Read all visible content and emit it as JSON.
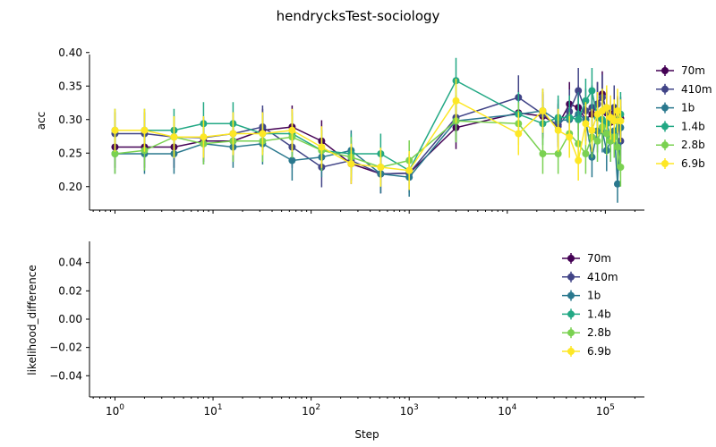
{
  "title": "hendrycksTest-sociology",
  "xlabel": "Step",
  "colors": {
    "70m": "#440154",
    "410m": "#414487",
    "1b": "#2a788e",
    "1.4b": "#22a884",
    "2.8b": "#7ad151",
    "6.9b": "#fde725"
  },
  "chart_data": [
    {
      "type": "line",
      "ylabel": "acc",
      "xscale": "log",
      "xlim": [
        0.55,
        250000
      ],
      "ylim": [
        0.165,
        0.405
      ],
      "yticks": [
        "0.20",
        "0.25",
        "0.30",
        "0.35",
        "0.40"
      ],
      "yticks_values": [
        0.2,
        0.25,
        0.3,
        0.35,
        0.4
      ],
      "xticks": [
        "10^0",
        "10^1",
        "10^2",
        "10^3",
        "10^4",
        "10^5"
      ],
      "legend_position": "outside-right",
      "x": [
        1,
        2,
        4,
        8,
        16,
        32,
        64,
        128,
        256,
        512,
        1000,
        3000,
        13000,
        23000,
        33000,
        43000,
        53000,
        63000,
        73000,
        83000,
        93000,
        103000,
        113000,
        123000,
        133000,
        143000
      ],
      "series": [
        {
          "name": "70m",
          "values": [
            0.259,
            0.259,
            0.259,
            0.268,
            0.268,
            0.284,
            0.289,
            0.268,
            0.234,
            0.219,
            0.22,
            0.288,
            0.31,
            0.305,
            0.292,
            0.323,
            0.318,
            0.3,
            0.308,
            0.323,
            0.338,
            0.31,
            0.296,
            0.31,
            0.3,
            0.302
          ],
          "errors": [
            0.031,
            0.031,
            0.031,
            0.031,
            0.031,
            0.032,
            0.032,
            0.031,
            0.03,
            0.029,
            0.029,
            0.032,
            0.033,
            0.033,
            0.032,
            0.033,
            0.033,
            0.032,
            0.033,
            0.033,
            0.034,
            0.033,
            0.032,
            0.033,
            0.032,
            0.032
          ]
        },
        {
          "name": "410m",
          "values": [
            0.279,
            0.279,
            0.274,
            0.273,
            0.279,
            0.289,
            0.259,
            0.229,
            0.239,
            0.219,
            0.22,
            0.303,
            0.333,
            0.308,
            0.29,
            0.312,
            0.343,
            0.313,
            0.318,
            0.323,
            0.333,
            0.313,
            0.298,
            0.318,
            0.303,
            0.268
          ],
          "errors": [
            0.032,
            0.032,
            0.031,
            0.031,
            0.032,
            0.032,
            0.031,
            0.03,
            0.03,
            0.029,
            0.029,
            0.033,
            0.033,
            0.033,
            0.032,
            0.033,
            0.034,
            0.033,
            0.033,
            0.033,
            0.034,
            0.033,
            0.032,
            0.033,
            0.032,
            0.031
          ]
        },
        {
          "name": "1b",
          "values": [
            0.249,
            0.249,
            0.249,
            0.264,
            0.259,
            0.264,
            0.239,
            0.244,
            0.254,
            0.219,
            0.214,
            0.298,
            0.308,
            0.313,
            0.298,
            0.3,
            0.308,
            0.3,
            0.244,
            0.283,
            0.283,
            0.254,
            0.268,
            0.283,
            0.204,
            0.288
          ],
          "errors": [
            0.03,
            0.03,
            0.03,
            0.031,
            0.031,
            0.031,
            0.03,
            0.03,
            0.03,
            0.029,
            0.029,
            0.032,
            0.033,
            0.033,
            0.032,
            0.032,
            0.033,
            0.032,
            0.03,
            0.032,
            0.032,
            0.031,
            0.031,
            0.032,
            0.028,
            0.032
          ]
        },
        {
          "name": "1.4b",
          "values": [
            0.284,
            0.284,
            0.284,
            0.294,
            0.294,
            0.279,
            0.279,
            0.254,
            0.249,
            0.249,
            0.224,
            0.358,
            0.308,
            0.294,
            0.303,
            0.303,
            0.3,
            0.328,
            0.343,
            0.303,
            0.3,
            0.294,
            0.274,
            0.274,
            0.298,
            0.308
          ],
          "errors": [
            0.032,
            0.032,
            0.032,
            0.032,
            0.032,
            0.032,
            0.032,
            0.031,
            0.03,
            0.03,
            0.029,
            0.034,
            0.033,
            0.032,
            0.033,
            0.033,
            0.032,
            0.033,
            0.034,
            0.033,
            0.032,
            0.032,
            0.031,
            0.031,
            0.032,
            0.033
          ]
        },
        {
          "name": "2.8b",
          "values": [
            0.249,
            0.254,
            0.274,
            0.264,
            0.268,
            0.268,
            0.274,
            0.254,
            0.244,
            0.229,
            0.239,
            0.298,
            0.294,
            0.249,
            0.249,
            0.279,
            0.264,
            0.249,
            0.274,
            0.268,
            0.289,
            0.279,
            0.268,
            0.274,
            0.259,
            0.229
          ],
          "errors": [
            0.03,
            0.03,
            0.031,
            0.031,
            0.031,
            0.031,
            0.031,
            0.03,
            0.03,
            0.029,
            0.03,
            0.032,
            0.032,
            0.03,
            0.03,
            0.032,
            0.031,
            0.03,
            0.031,
            0.031,
            0.032,
            0.032,
            0.031,
            0.031,
            0.031,
            0.029
          ]
        },
        {
          "name": "6.9b",
          "values": [
            0.284,
            0.284,
            0.274,
            0.274,
            0.279,
            0.279,
            0.284,
            0.259,
            0.234,
            0.229,
            0.224,
            0.328,
            0.279,
            0.313,
            0.284,
            0.274,
            0.239,
            0.294,
            0.284,
            0.308,
            0.313,
            0.318,
            0.303,
            0.298,
            0.313,
            0.298
          ],
          "errors": [
            0.032,
            0.032,
            0.031,
            0.031,
            0.032,
            0.032,
            0.032,
            0.031,
            0.03,
            0.029,
            0.029,
            0.033,
            0.032,
            0.033,
            0.032,
            0.031,
            0.03,
            0.032,
            0.032,
            0.033,
            0.033,
            0.033,
            0.033,
            0.032,
            0.033,
            0.032
          ]
        }
      ]
    },
    {
      "type": "line",
      "ylabel": "likelihood_difference",
      "xscale": "log",
      "xlim": [
        0.55,
        250000
      ],
      "ylim": [
        -0.055,
        0.055
      ],
      "yticks": [
        "−0.04",
        "−0.02",
        "0.00",
        "0.02",
        "0.04"
      ],
      "yticks_values": [
        -0.04,
        -0.02,
        0.0,
        0.02,
        0.04
      ],
      "xticks": [
        "10^0",
        "10^1",
        "10^2",
        "10^3",
        "10^4",
        "10^5"
      ],
      "legend_position": "upper-right",
      "series": [
        {
          "name": "70m",
          "values": []
        },
        {
          "name": "410m",
          "values": []
        },
        {
          "name": "1b",
          "values": []
        },
        {
          "name": "1.4b",
          "values": []
        },
        {
          "name": "2.8b",
          "values": []
        },
        {
          "name": "6.9b",
          "values": []
        }
      ]
    }
  ]
}
